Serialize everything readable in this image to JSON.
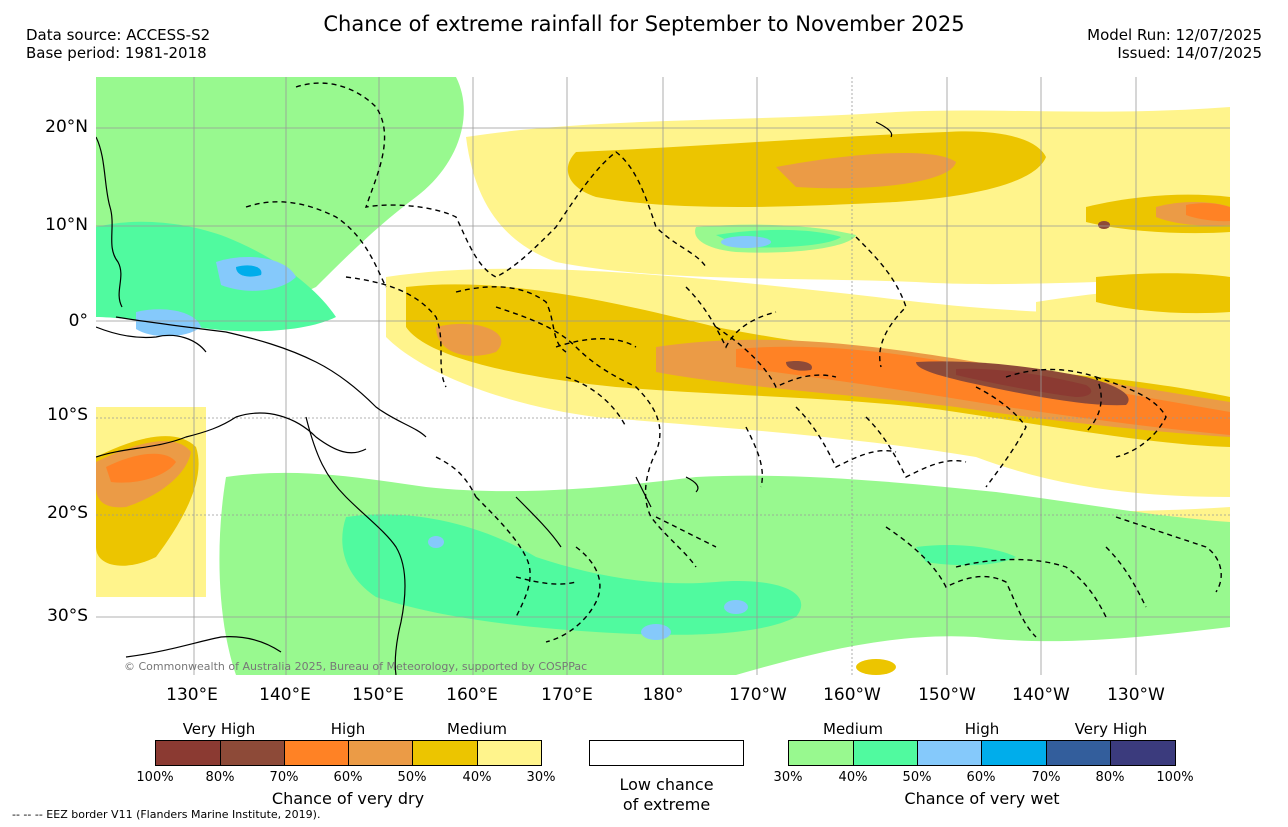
{
  "title": "Chance of extreme rainfall for September to November 2025",
  "data_source": "Data source: ACCESS-S2",
  "base_period": "Base period: 1981-2018",
  "model_run": "Model Run: 12/07/2025",
  "issued": "Issued: 14/07/2025",
  "copyright": "© Commonwealth of Australia 2025, Bureau of Meteorology, supported by COSPPac",
  "eez_note": "--  --  -- EEZ border V11 (Flanders Marine Institute, 2019).",
  "lat_labels": [
    "20°N",
    "10°N",
    "0°",
    "10°S",
    "20°S",
    "30°S"
  ],
  "lon_labels": [
    "130°E",
    "140°E",
    "150°E",
    "160°E",
    "170°E",
    "180°",
    "170°W",
    "160°W",
    "150°W",
    "140°W",
    "130°W"
  ],
  "dry_legend": {
    "headings": [
      "Very High",
      "High",
      "Medium"
    ],
    "ticks": [
      "100%",
      "80%",
      "70%",
      "60%",
      "50%",
      "40%",
      "30%"
    ],
    "colors": [
      "#8b3a32",
      "#8d4a38",
      "#ff8225",
      "#eb9b46",
      "#ecc500",
      "#fff48c"
    ],
    "caption": "Chance of very dry"
  },
  "neutral_legend": {
    "caption_line1": "Low chance",
    "caption_line2": "of extreme",
    "color": "#ffffff"
  },
  "wet_legend": {
    "headings": [
      "Medium",
      "High",
      "Very High"
    ],
    "ticks": [
      "30%",
      "40%",
      "50%",
      "60%",
      "70%",
      "80%",
      "100%"
    ],
    "colors": [
      "#98f98f",
      "#50fa9f",
      "#85c9fb",
      "#00adeb",
      "#335e9c",
      "#3b3b7d"
    ],
    "caption": "Chance of very wet"
  }
}
